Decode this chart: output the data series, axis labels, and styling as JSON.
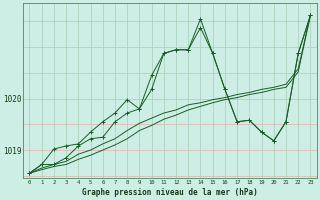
{
  "title": "Graphe pression niveau de la mer (hPa)",
  "bg_color": "#cceee4",
  "line_color": "#1a5c28",
  "grid_h_color": "#e8b0b0",
  "grid_v_color": "#a8ceb8",
  "xlim": [
    -0.5,
    23.5
  ],
  "ylim": [
    1018.45,
    1021.85
  ],
  "yticks": [
    1019,
    1020
  ],
  "xticks": [
    0,
    1,
    2,
    3,
    4,
    5,
    6,
    7,
    8,
    9,
    10,
    11,
    12,
    13,
    14,
    15,
    16,
    17,
    18,
    19,
    20,
    21,
    22,
    23
  ],
  "series_jagged1": [
    1018.55,
    1018.72,
    1018.72,
    1018.85,
    1019.08,
    1019.22,
    1019.25,
    1019.55,
    1019.72,
    1019.8,
    1020.18,
    1020.88,
    1020.95,
    1020.95,
    1021.38,
    1020.88,
    1020.18,
    1019.55,
    1019.58,
    1019.35,
    1019.18,
    1019.55,
    1020.88,
    1021.62
  ],
  "series_jagged2": [
    1018.55,
    1018.72,
    1019.02,
    1019.08,
    1019.12,
    1019.35,
    1019.55,
    1019.72,
    1019.98,
    1019.8,
    1020.45,
    1020.88,
    1020.95,
    1020.95,
    1021.55,
    1020.88,
    1020.18,
    1019.55,
    1019.58,
    1019.35,
    1019.18,
    1019.55,
    1020.88,
    1021.62
  ],
  "series_smooth1": [
    1018.55,
    1018.62,
    1018.68,
    1018.72,
    1018.82,
    1018.9,
    1019.0,
    1019.1,
    1019.22,
    1019.38,
    1019.48,
    1019.6,
    1019.68,
    1019.78,
    1019.85,
    1019.92,
    1019.98,
    1020.02,
    1020.08,
    1020.12,
    1020.18,
    1020.22,
    1020.52,
    1021.62
  ],
  "series_smooth2": [
    1018.55,
    1018.65,
    1018.72,
    1018.78,
    1018.92,
    1019.0,
    1019.12,
    1019.22,
    1019.38,
    1019.52,
    1019.62,
    1019.72,
    1019.78,
    1019.88,
    1019.92,
    1019.98,
    1020.02,
    1020.08,
    1020.12,
    1020.18,
    1020.22,
    1020.28,
    1020.58,
    1021.62
  ]
}
